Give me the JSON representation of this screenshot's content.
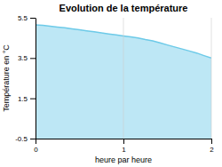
{
  "chart_data": {
    "type": "area",
    "title": "Evolution de la température",
    "xlabel": "heure par heure",
    "ylabel": "Température en °C",
    "x": [
      0.0,
      0.083,
      0.167,
      0.25,
      0.333,
      0.417,
      0.5,
      0.583,
      0.667,
      0.75,
      0.833,
      0.917,
      1.0,
      1.083,
      1.167,
      1.25,
      1.333,
      1.417,
      1.5,
      1.583,
      1.667,
      1.75,
      1.833,
      1.917,
      2.0
    ],
    "values": [
      5.15,
      5.12,
      5.08,
      5.04,
      5.0,
      4.95,
      4.9,
      4.85,
      4.8,
      4.75,
      4.7,
      4.65,
      4.6,
      4.55,
      4.5,
      4.42,
      4.35,
      4.25,
      4.15,
      4.05,
      3.95,
      3.85,
      3.75,
      3.62,
      3.5
    ],
    "color": "#6dcae8",
    "xlim": [
      0,
      2
    ],
    "ylim": [
      -0.5,
      5.5
    ],
    "xticks": [
      0,
      1,
      2
    ],
    "yticks": [
      -0.5,
      1.5,
      3.5,
      5.5
    ],
    "grid": "x"
  }
}
